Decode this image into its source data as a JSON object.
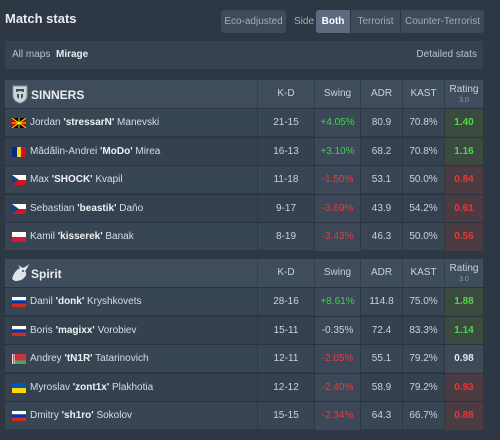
{
  "header": {
    "title": "Match stats",
    "eco_label": "Eco-adjusted",
    "side_label": "Side",
    "sides": [
      {
        "label": "Both",
        "active": true
      },
      {
        "label": "Terrorist",
        "active": false
      },
      {
        "label": "Counter-Terrorist",
        "active": false
      }
    ]
  },
  "mapbar": {
    "all_maps": "All maps",
    "current_map": "Mirage",
    "detailed_stats": "Detailed stats"
  },
  "columns": {
    "kd": "K-D",
    "swing": "Swing",
    "adr": "ADR",
    "kast": "KAST",
    "rating": "Rating",
    "rating_sub": "3.0"
  },
  "teams": [
    {
      "name": "SINNERS",
      "logo_icon": "sinners-logo-icon",
      "players": [
        {
          "first": "Jordan",
          "nick": "'stressarN'",
          "last": "Manevski",
          "flag": "north-macedonia-flag-icon",
          "kd": "21-15",
          "swing": "+4.05%",
          "swing_sign": "pos",
          "adr": "80.9",
          "kast": "70.8%",
          "rating": "1.40",
          "rating_class": "good"
        },
        {
          "first": "Mădălin-Andrei",
          "nick": "'MoDo'",
          "last": "Mirea",
          "flag": "romania-flag-icon",
          "kd": "16-13",
          "swing": "+3.10%",
          "swing_sign": "pos",
          "adr": "68.2",
          "kast": "70.8%",
          "rating": "1.16",
          "rating_class": "good"
        },
        {
          "first": "Max",
          "nick": "'SHOCK'",
          "last": "Kvapil",
          "flag": "czech-flag-icon",
          "kd": "11-18",
          "swing": "-1.50%",
          "swing_sign": "neg",
          "adr": "53.1",
          "kast": "50.0%",
          "rating": "0.84",
          "rating_class": "bad"
        },
        {
          "first": "Sebastian",
          "nick": "'beastik'",
          "last": "Daňo",
          "flag": "czech-flag-icon",
          "kd": "9-17",
          "swing": "-3.69%",
          "swing_sign": "neg",
          "adr": "43.9",
          "kast": "54.2%",
          "rating": "0.61",
          "rating_class": "bad"
        },
        {
          "first": "Kamil",
          "nick": "'kisserek'",
          "last": "Banak",
          "flag": "poland-flag-icon",
          "kd": "8-19",
          "swing": "-3.43%",
          "swing_sign": "neg",
          "adr": "46.3",
          "kast": "50.0%",
          "rating": "0.56",
          "rating_class": "bad"
        }
      ]
    },
    {
      "name": "Spirit",
      "logo_icon": "spirit-logo-icon",
      "players": [
        {
          "first": "Danil",
          "nick": "'donk'",
          "last": "Kryshkovets",
          "flag": "russia-flag-icon",
          "kd": "28-16",
          "swing": "+8.61%",
          "swing_sign": "pos",
          "adr": "114.8",
          "kast": "75.0%",
          "rating": "1.88",
          "rating_class": "good"
        },
        {
          "first": "Boris",
          "nick": "'magixx'",
          "last": "Vorobiev",
          "flag": "russia-flag-icon",
          "kd": "15-11",
          "swing": "-0.35%",
          "swing_sign": "neu",
          "adr": "72.4",
          "kast": "83.3%",
          "rating": "1.14",
          "rating_class": "good"
        },
        {
          "first": "Andrey",
          "nick": "'tN1R'",
          "last": "Tatarinovich",
          "flag": "belarus-flag-icon",
          "kd": "12-11",
          "swing": "-2.05%",
          "swing_sign": "neg",
          "adr": "55.1",
          "kast": "79.2%",
          "rating": "0.98",
          "rating_class": "mid"
        },
        {
          "first": "Myroslav",
          "nick": "'zont1x'",
          "last": "Plakhotia",
          "flag": "ukraine-flag-icon",
          "kd": "12-12",
          "swing": "-2.40%",
          "swing_sign": "neg",
          "adr": "58.9",
          "kast": "79.2%",
          "rating": "0.93",
          "rating_class": "bad"
        },
        {
          "first": "Dmitry",
          "nick": "'sh1ro'",
          "last": "Sokolov",
          "flag": "russia-flag-icon",
          "kd": "15-15",
          "swing": "-2.34%",
          "swing_sign": "neg",
          "adr": "64.3",
          "kast": "66.7%",
          "rating": "0.88",
          "rating_class": "bad"
        }
      ]
    }
  ]
}
